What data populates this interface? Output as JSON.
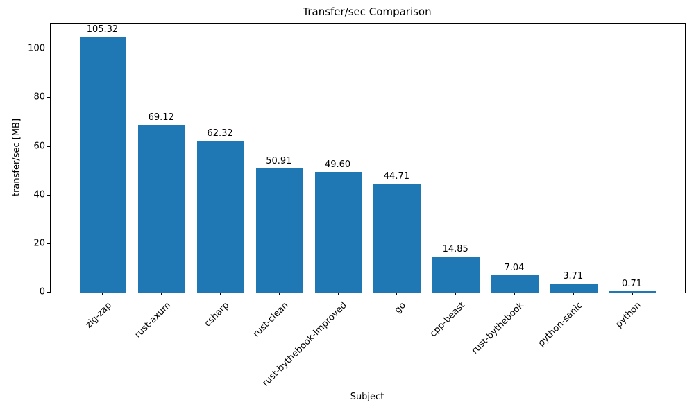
{
  "chart_data": {
    "type": "bar",
    "title": "Transfer/sec Comparison",
    "xlabel": "Subject",
    "ylabel": "transfer/sec [MB]",
    "categories": [
      "zig-zap",
      "rust-axum",
      "csharp",
      "rust-clean",
      "rust-bythebook-improved",
      "go",
      "cpp-beast",
      "rust-bythebook",
      "python-sanic",
      "python"
    ],
    "values": [
      105.32,
      69.12,
      62.32,
      50.91,
      49.6,
      44.71,
      14.85,
      7.04,
      3.71,
      0.71
    ],
    "value_label_decimals": 2,
    "yticks": [
      0,
      20,
      40,
      60,
      80,
      100
    ],
    "ylim": [
      0,
      110.6
    ],
    "bar_color": "#1f77b4",
    "axis_color": "#000000",
    "text_color": "#000000",
    "background_color": "#ffffff",
    "grid": false,
    "legend_position": "none",
    "xtick_rotation_deg": 45
  }
}
